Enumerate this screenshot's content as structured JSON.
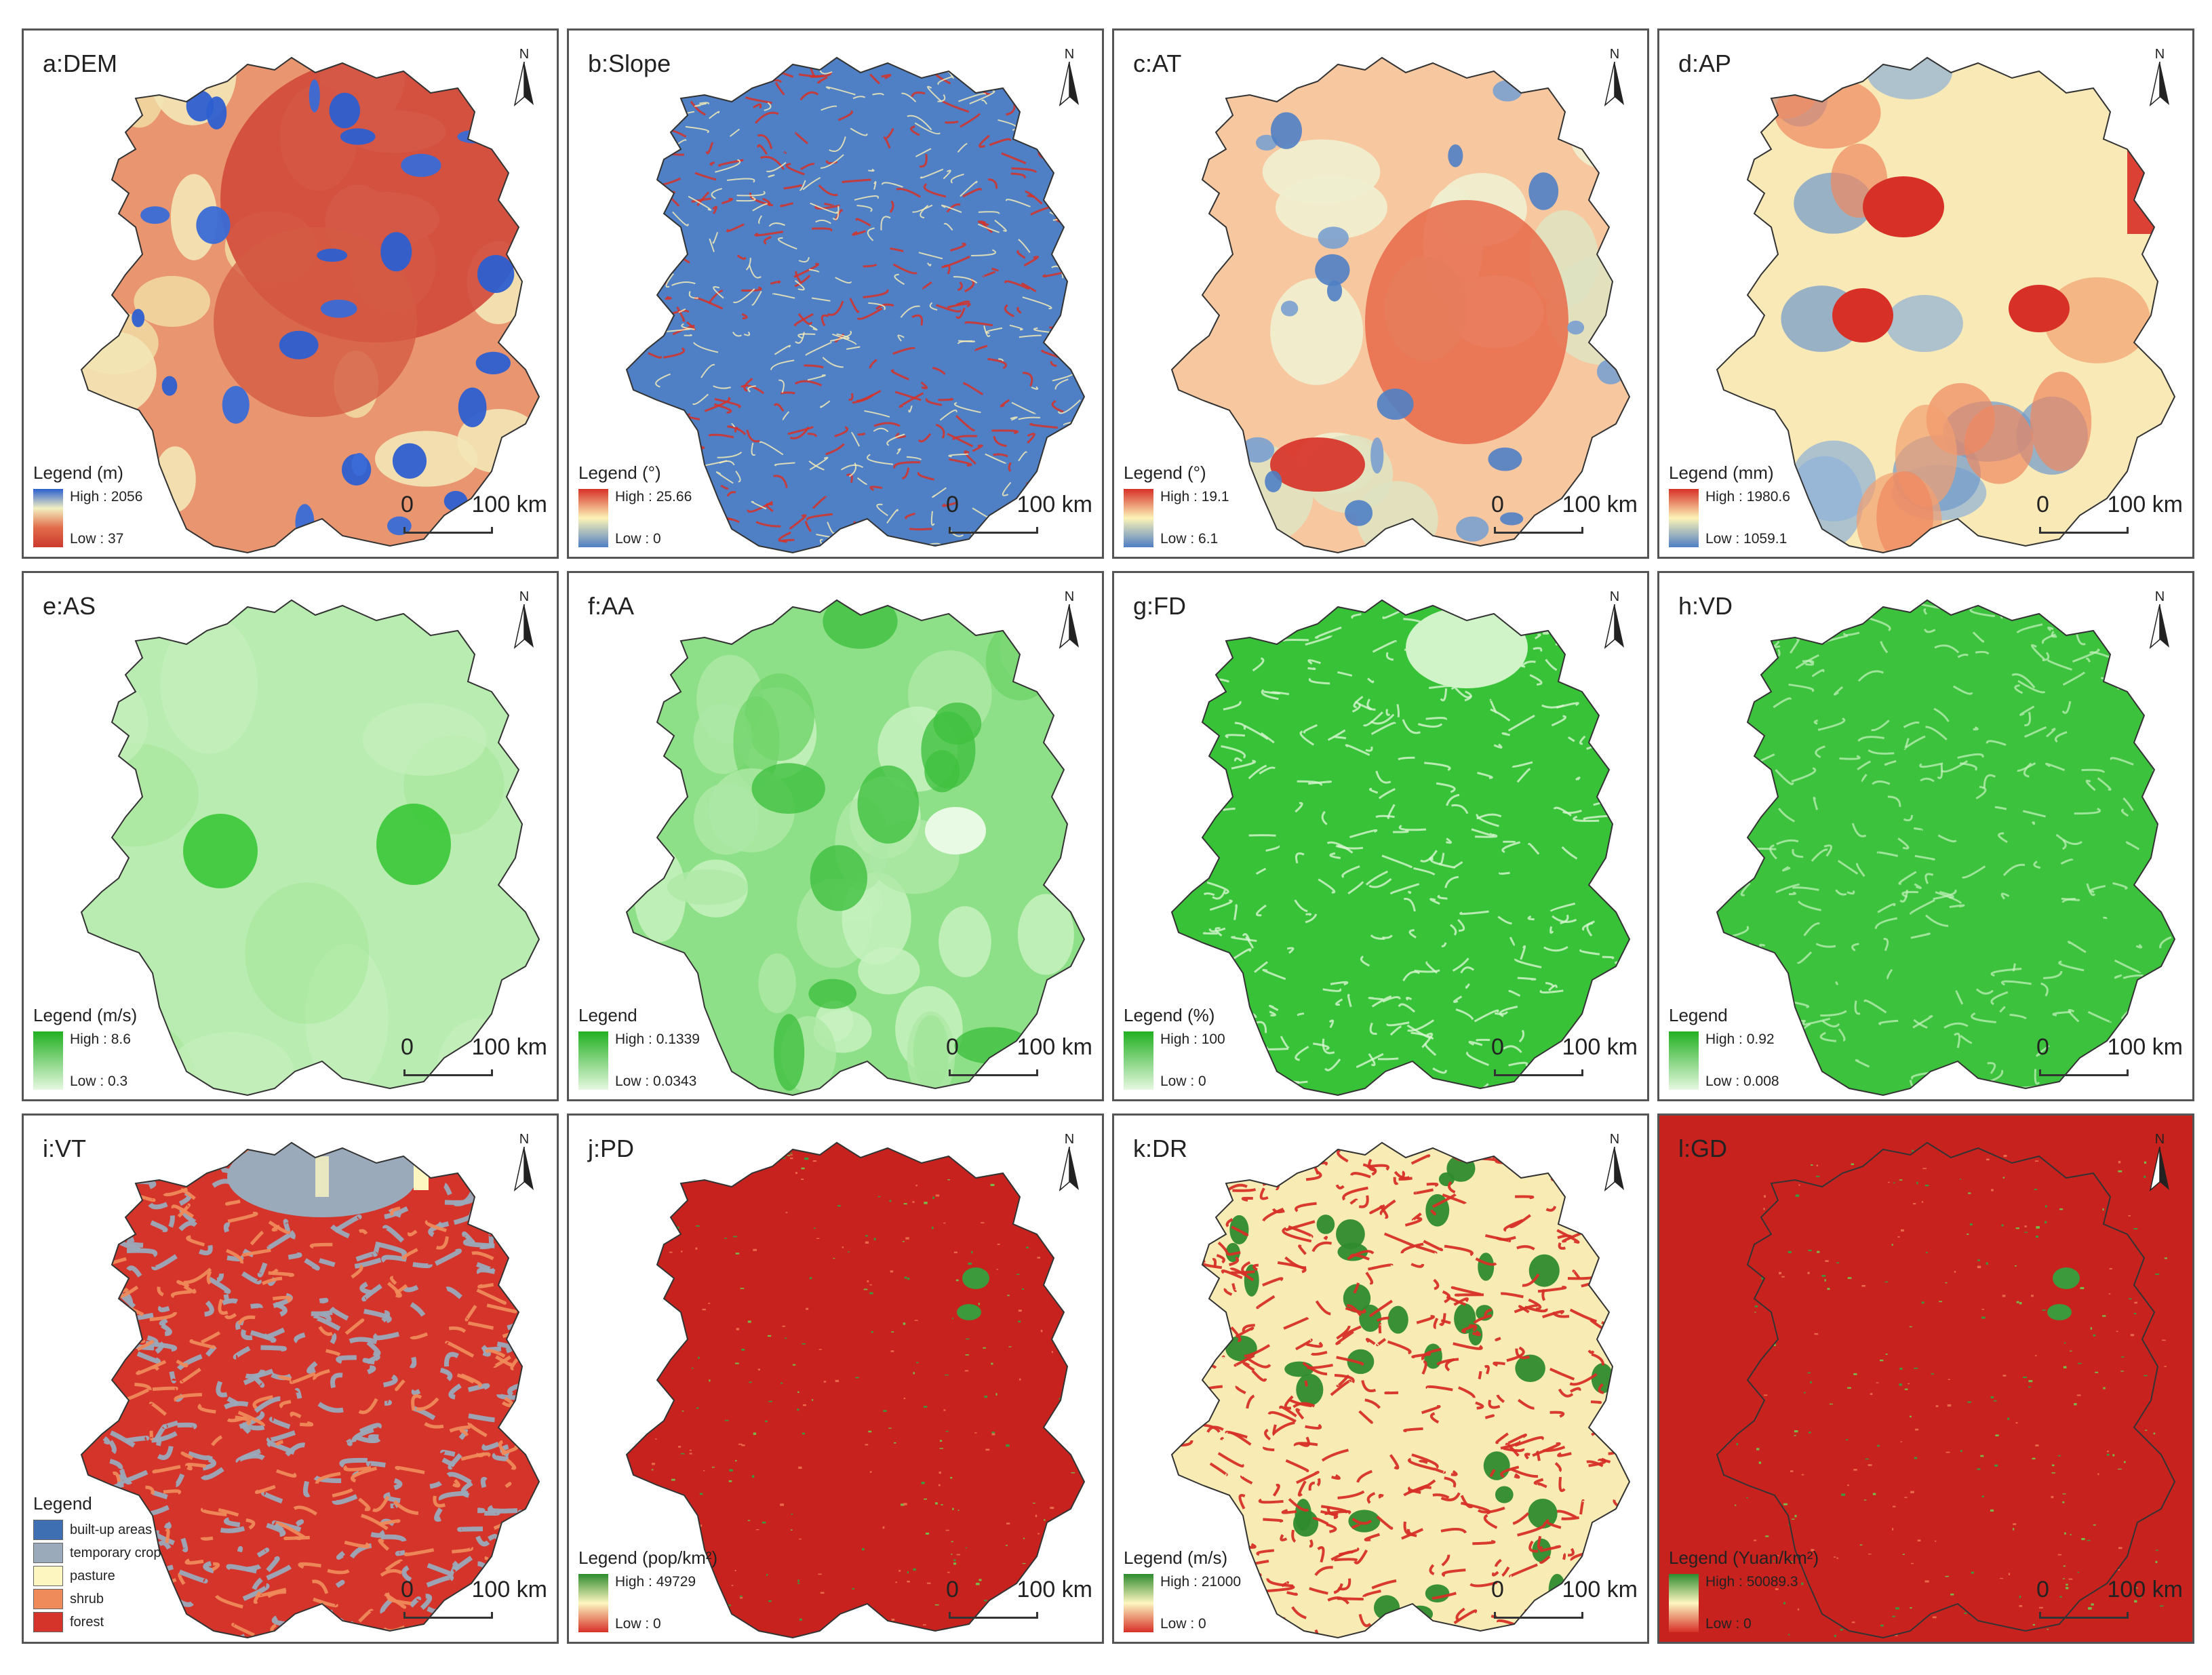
{
  "panels": [
    {
      "id": "a",
      "title": "a:DEM",
      "legend_title": "Legend (m)",
      "high": "High : 2056",
      "low": "Low : 37",
      "ramp": [
        "#2b5fd0",
        "#f3f0c0",
        "#e26c4a",
        "#cc3a2e"
      ],
      "fill": "dem"
    },
    {
      "id": "b",
      "title": "b:Slope",
      "legend_title": "Legend (°)",
      "high": "High : 25.66",
      "low": "Low : 0",
      "ramp": [
        "#d73027",
        "#fdf3b8",
        "#4f7fc4"
      ],
      "fill": "slope"
    },
    {
      "id": "c",
      "title": "c:AT",
      "legend_title": "Legend (°)",
      "high": "High : 19.1",
      "low": "Low : 6.1",
      "ramp": [
        "#d73027",
        "#fdf3b8",
        "#4f7fc4"
      ],
      "fill": "at"
    },
    {
      "id": "d",
      "title": "d:AP",
      "legend_title": "Legend (mm)",
      "high": "High : 1980.6",
      "low": "Low : 1059.1",
      "ramp": [
        "#d73027",
        "#fdf3b8",
        "#4f7fc4"
      ],
      "fill": "ap"
    },
    {
      "id": "e",
      "title": "e:AS",
      "legend_title": "Legend (m/s)",
      "high": "High : 8.6",
      "low": "Low : 0.3",
      "ramp": [
        "#22b022",
        "#e6f8e0"
      ],
      "fill": "as"
    },
    {
      "id": "f",
      "title": "f:AA",
      "legend_title": "Legend",
      "high": "High : 0.1339",
      "low": "Low : 0.0343",
      "ramp": [
        "#22b022",
        "#e6f8e0"
      ],
      "fill": "aa"
    },
    {
      "id": "g",
      "title": "g:FD",
      "legend_title": "Legend (%)",
      "high": "High : 100",
      "low": "Low : 0",
      "ramp": [
        "#22b022",
        "#e6f8e0"
      ],
      "fill": "fd"
    },
    {
      "id": "h",
      "title": "h:VD",
      "legend_title": "Legend",
      "high": "High : 0.92",
      "low": "Low : 0.008",
      "ramp": [
        "#22b022",
        "#e6f8e0"
      ],
      "fill": "vd"
    },
    {
      "id": "i",
      "title": "i:VT",
      "legend_title": "Legend",
      "categories": [
        {
          "label": "built-up areas",
          "color": "#3f6fb3"
        },
        {
          "label": "temporary crop",
          "color": "#9aaabb"
        },
        {
          "label": "pasture",
          "color": "#fdf6c0"
        },
        {
          "label": "shrub",
          "color": "#ef8a5a"
        },
        {
          "label": "forest",
          "color": "#d4342a"
        }
      ],
      "fill": "vt"
    },
    {
      "id": "j",
      "title": "j:PD",
      "legend_title": "Legend (pop/km²)",
      "high": "High : 49729",
      "low": "Low : 0",
      "ramp": [
        "#2e8b2e",
        "#fdf6c0",
        "#d73027"
      ],
      "fill": "pd"
    },
    {
      "id": "k",
      "title": "k:DR",
      "legend_title": "Legend (m/s)",
      "high": "High : 21000",
      "low": "Low : 0",
      "ramp": [
        "#2e8b2e",
        "#fdf6c0",
        "#d73027"
      ],
      "fill": "dr"
    },
    {
      "id": "l",
      "title": "l:GD",
      "legend_title": "Legend (Yuan/km²)",
      "high": "High : 50089.3",
      "low": "Low : 0",
      "ramp": [
        "#2e8b2e",
        "#fdf6c0",
        "#d73027"
      ],
      "fill": "gd"
    }
  ],
  "north_label": "N",
  "scale": {
    "zero": "0",
    "distance": "100 km"
  }
}
